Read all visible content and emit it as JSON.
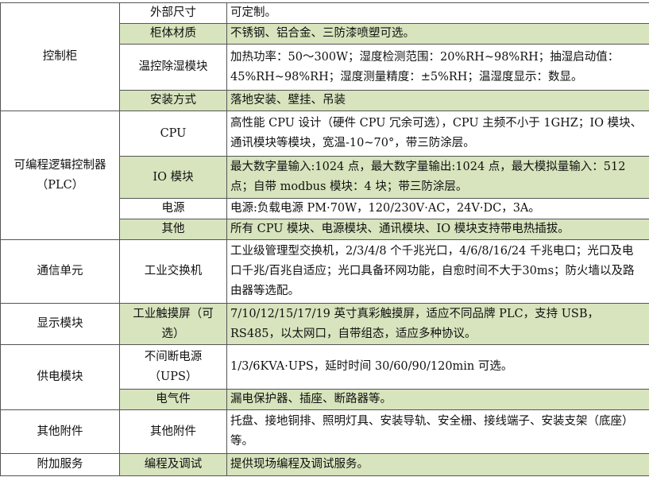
{
  "colors": {
    "shade": "#d7e4bd",
    "border": "#555555"
  },
  "rows": [
    {
      "group": "控制柜",
      "items": [
        {
          "name": "外部尺寸",
          "desc": "可定制。",
          "shaded": false
        },
        {
          "name": "柜体材质",
          "desc": "不锈钢、铝合金、三防漆喷塑可选。",
          "shaded": true
        },
        {
          "name": "温控除湿模块",
          "desc": "加热功率：50～300W；湿度检测范围：20%RH~98%RH；抽湿启动值：45%RH~98%RH；湿度测量精度：±5%RH；温湿度显示：数显。",
          "shaded": false
        },
        {
          "name": "安装方式",
          "desc": "落地安装、壁挂、吊装",
          "shaded": true
        }
      ]
    },
    {
      "group": "可编程逻辑控制器（PLC）",
      "items": [
        {
          "name": "CPU",
          "desc": "高性能 CPU 设计（硬件 CPU 冗余可选），CPU 主频不小于 1GHZ；IO 模块、通讯模块等模块，宽温-10~70°，带三防涂层。",
          "shaded": false
        },
        {
          "name": "IO 模块",
          "desc": "最大数字量输入:1024 点，最大数字量输出:1024 点，最大模拟量输入：512 点；自带 modbus 模块：4 块；带三防涂层。",
          "shaded": true
        },
        {
          "name": "电源",
          "desc": "电源:负载电源 PM·70W，120/230V·AC，24V·DC，3A。",
          "shaded": false
        },
        {
          "name": "其他",
          "desc": "所有 CPU 模块、电源模块、通讯模块、IO 模块支持带电热插拔。",
          "shaded": true
        }
      ]
    },
    {
      "group": "通信单元",
      "items": [
        {
          "name": "工业交换机",
          "desc": "工业级管理型交换机，2/3/4/8 个千兆光口，4/6/8/16/24 千兆电口；光口及电口千兆/百兆自适应；光口具备环网功能，自愈时间不大于30ms；防火墙以及路由器等选配。",
          "shaded": false
        }
      ]
    },
    {
      "group": "显示模块",
      "items": [
        {
          "name": "工业触摸屏（可选）",
          "desc": "7/10/12/15/17/19 英寸真彩触摸屏，适应不同品牌 PLC，支持 USB，RS485，以太网口，自带组态，适应多种协议。",
          "shaded": true
        }
      ]
    },
    {
      "group": "供电模块",
      "items": [
        {
          "name": "不间断电源（UPS）",
          "desc": "1/3/6KVA·UPS，延时时间 30/60/90/120min 可选。",
          "shaded": false
        },
        {
          "name": "电气件",
          "desc": "漏电保护器、插座、断路器等。",
          "shaded": true
        }
      ]
    },
    {
      "group": "其他附件",
      "items": [
        {
          "name": "其他附件",
          "desc": "托盘、接地铜排、照明灯具、安装导轨、安全栅、接线端子、安装支架（底座）等。",
          "shaded": false
        }
      ]
    },
    {
      "group": "附加服务",
      "items": [
        {
          "name": "编程及调试",
          "desc": "提供现场编程及调试服务。",
          "shaded": true
        }
      ]
    }
  ]
}
